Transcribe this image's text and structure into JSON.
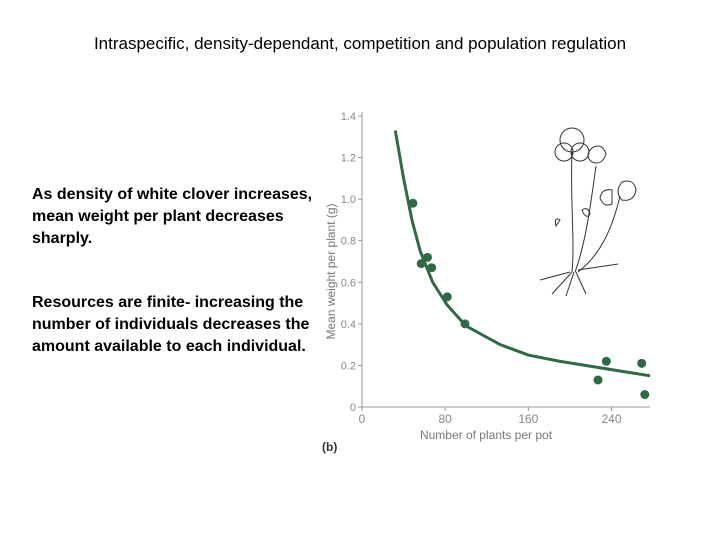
{
  "slide": {
    "title": "Intraspecific, density-dependant, competition and population regulation",
    "bullets": [
      "As density of white clover increases, mean weight per plant decreases sharply.",
      "Resources are finite- increasing the number of individuals decreases the amount available to each individual."
    ]
  },
  "chart_data": {
    "type": "scatter",
    "x_label": "Number of plants per pot",
    "y_label": "Mean weight per plant (g)",
    "caption": "(b)",
    "color": "#2e6b45",
    "points": {
      "x": [
        49,
        57,
        63,
        67,
        82,
        99,
        227,
        235,
        269,
        272
      ],
      "y": [
        0.98,
        0.69,
        0.72,
        0.67,
        0.53,
        0.4,
        0.13,
        0.22,
        0.21,
        0.06
      ]
    },
    "curve": {
      "x": [
        32,
        40,
        48,
        56,
        68,
        82,
        100,
        133,
        160,
        190,
        240,
        277
      ],
      "y": [
        1.33,
        1.1,
        0.9,
        0.75,
        0.6,
        0.49,
        0.39,
        0.3,
        0.25,
        0.22,
        0.18,
        0.15
      ]
    },
    "xlim": [
      0,
      277
    ],
    "ylim": [
      0,
      1.4
    ],
    "xticks": [
      0,
      80,
      160,
      240
    ],
    "yticks": [
      0,
      0.2,
      0.4,
      0.6,
      0.8,
      {
        "value": 1,
        "label": "1.0"
      },
      1.2,
      1.4
    ]
  }
}
